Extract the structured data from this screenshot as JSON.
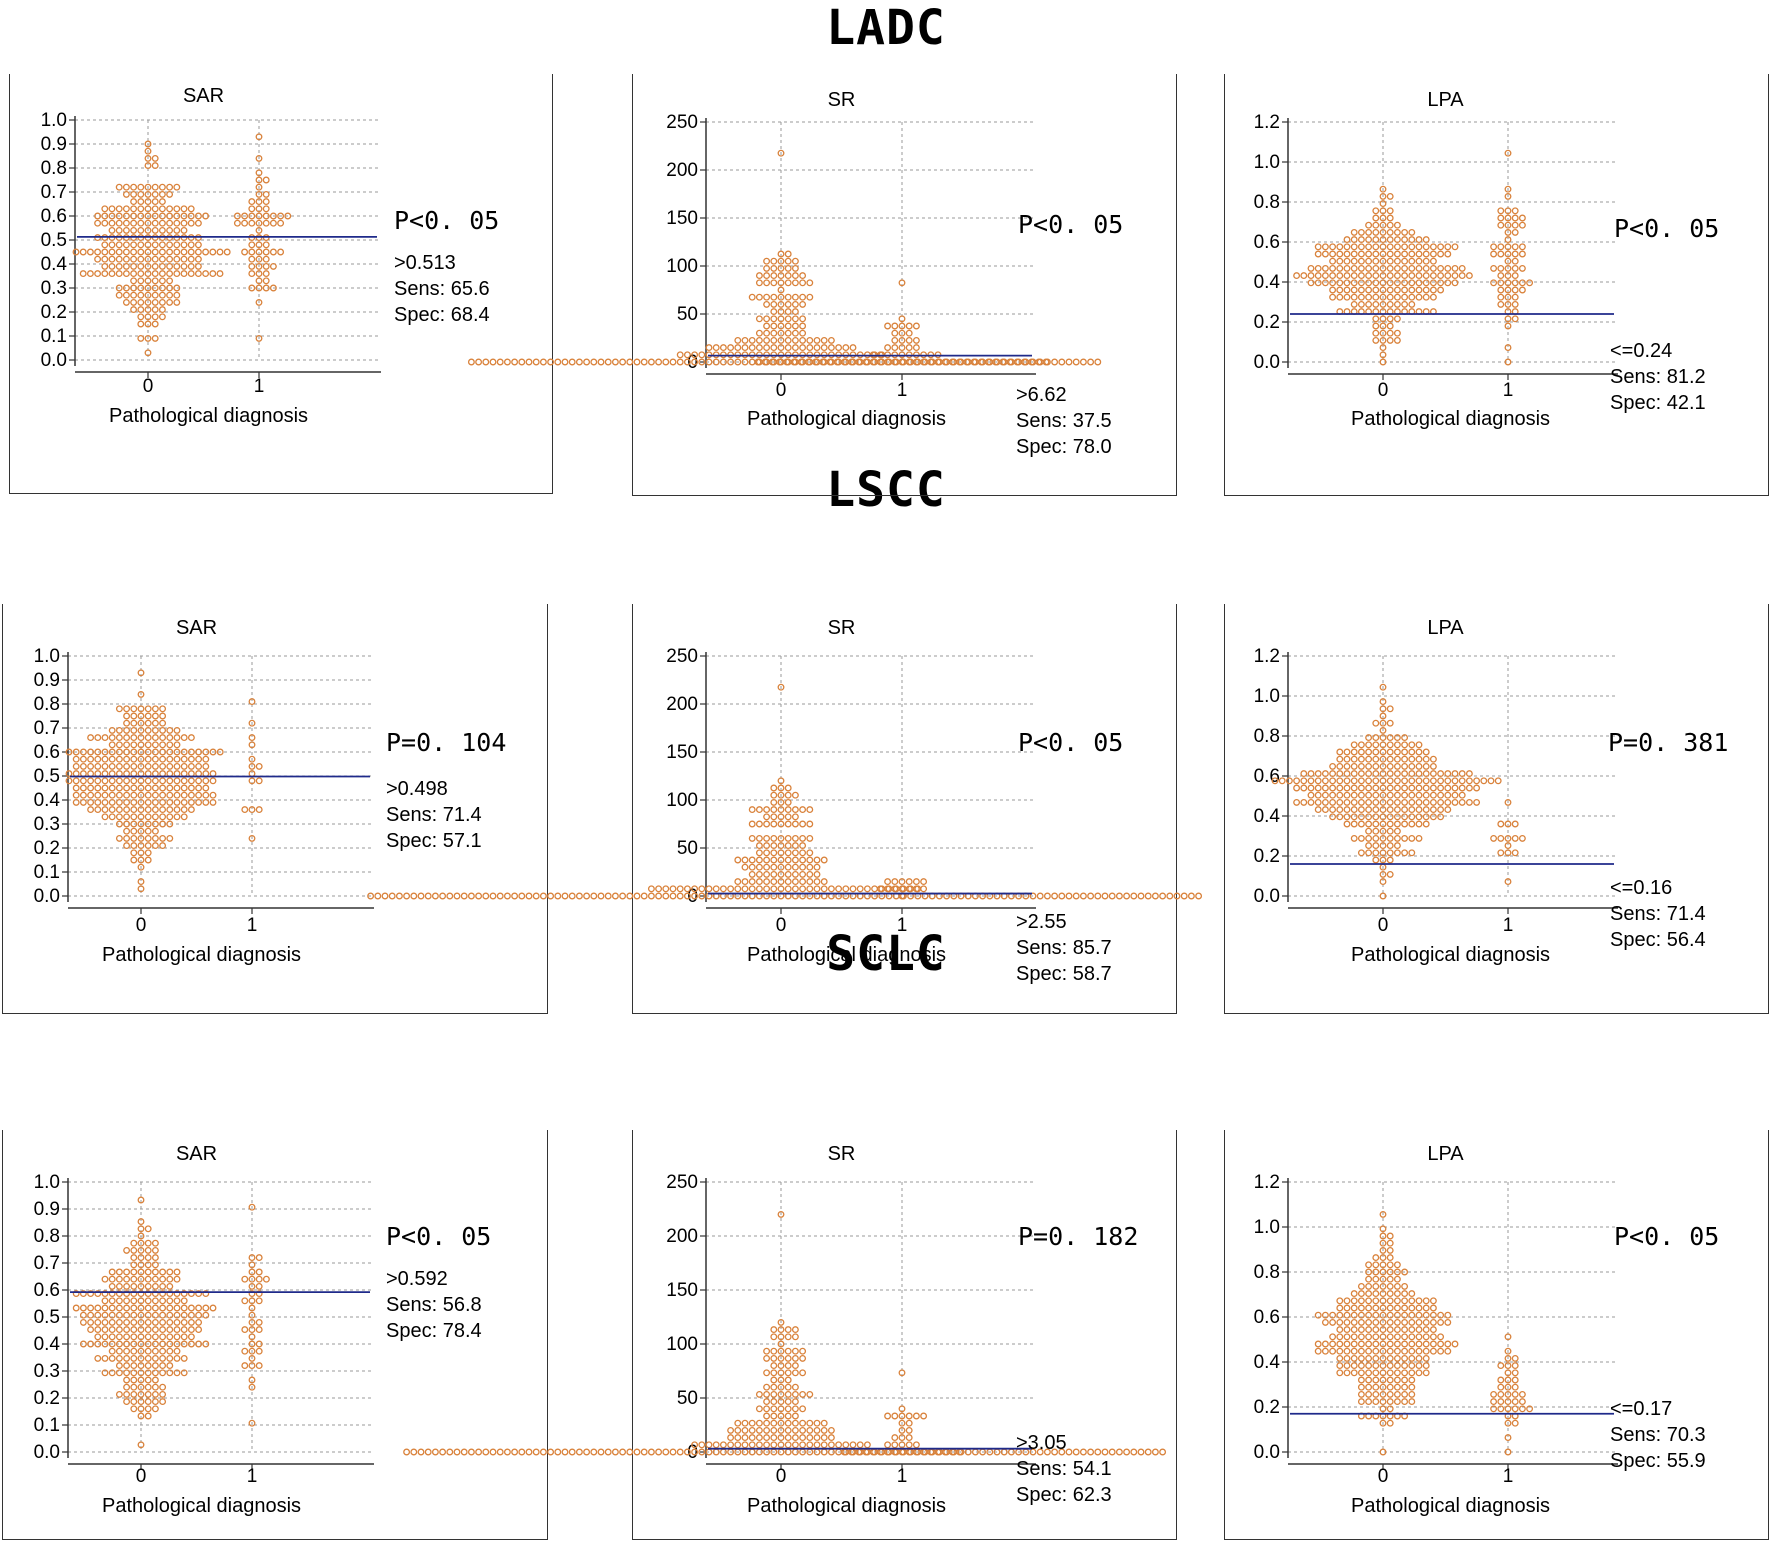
{
  "sections": [
    {
      "title": "LADC"
    },
    {
      "title": "LSCC"
    },
    {
      "title": "SCLC"
    }
  ],
  "chart_data": [
    {
      "type": "scatter",
      "id": "LADC-SAR",
      "title": "SAR",
      "xlabel": "Pathological diagnosis",
      "categories": [
        "0",
        "1"
      ],
      "ylim": [
        0,
        1.0
      ],
      "yticks": [
        "0.0",
        "0.1",
        "0.2",
        "0.3",
        "0.4",
        "0.5",
        "0.6",
        "0.7",
        "0.8",
        "0.9",
        "1.0"
      ],
      "distribution": [
        {
          "group": "0",
          "n": 230,
          "min": 0.03,
          "max": 0.9
        },
        {
          "group": "1",
          "n": 60,
          "min": 0.09,
          "max": 0.93
        }
      ],
      "cutoff_value": 0.513,
      "p_value": "P<0. 05",
      "criterion": ">0.513",
      "sensitivity": "Sens: 65.6",
      "specificity": "Spec: 68.4"
    },
    {
      "type": "scatter",
      "id": "LADC-SR",
      "title": "SR",
      "xlabel": "Pathological diagnosis",
      "categories": [
        "0",
        "1"
      ],
      "ylim": [
        0,
        250
      ],
      "yticks": [
        "0",
        "50",
        "100",
        "150",
        "200",
        "250"
      ],
      "distribution": [
        {
          "group": "0",
          "n": 220,
          "min": 0,
          "max": 217
        },
        {
          "group": "1",
          "n": 70,
          "min": 0,
          "max": 80
        }
      ],
      "cutoff_value": 6.62,
      "p_value": "P<0. 05",
      "criterion": ">6.62",
      "sensitivity": "Sens: 37.5",
      "specificity": "Spec: 78.0"
    },
    {
      "type": "scatter",
      "id": "LADC-LPA",
      "title": "LPA",
      "xlabel": "Pathological diagnosis",
      "categories": [
        "0",
        "1"
      ],
      "ylim": [
        0,
        1.2
      ],
      "yticks": [
        "0.0",
        "0.2",
        "0.4",
        "0.6",
        "0.8",
        "1.0",
        "1.2"
      ],
      "distribution": [
        {
          "group": "0",
          "n": 230,
          "min": 0,
          "max": 0.88
        },
        {
          "group": "1",
          "n": 60,
          "min": 0,
          "max": 1.04
        }
      ],
      "cutoff_value": 0.24,
      "p_value": "P<0. 05",
      "criterion": "<=0.24",
      "sensitivity": "Sens: 81.2",
      "specificity": "Spec: 42.1"
    },
    {
      "type": "scatter",
      "id": "LSCC-SAR",
      "title": "SAR",
      "xlabel": "Pathological diagnosis",
      "categories": [
        "0",
        "1"
      ],
      "ylim": [
        0,
        1.0
      ],
      "yticks": [
        "0.0",
        "0.1",
        "0.2",
        "0.3",
        "0.4",
        "0.5",
        "0.6",
        "0.7",
        "0.8",
        "0.9",
        "1.0"
      ],
      "distribution": [
        {
          "group": "0",
          "n": 280,
          "min": 0.03,
          "max": 0.93
        },
        {
          "group": "1",
          "n": 14,
          "min": 0.23,
          "max": 0.82
        }
      ],
      "cutoff_value": 0.498,
      "p_value": "P=0. 104",
      "criterion": ">0.498",
      "sensitivity": "Sens: 71.4",
      "specificity": "Spec: 57.1"
    },
    {
      "type": "scatter",
      "id": "LSCC-SR",
      "title": "SR",
      "xlabel": "Pathological diagnosis",
      "categories": [
        "0",
        "1"
      ],
      "ylim": [
        0,
        250
      ],
      "yticks": [
        "0",
        "50",
        "100",
        "150",
        "200",
        "250"
      ],
      "distribution": [
        {
          "group": "0",
          "n": 260,
          "min": 0,
          "max": 217
        },
        {
          "group": "1",
          "n": 14,
          "min": 2,
          "max": 17
        }
      ],
      "cutoff_value": 2.55,
      "p_value": "P<0. 05",
      "criterion": ">2.55",
      "sensitivity": "Sens: 85.7",
      "specificity": "Spec: 58.7"
    },
    {
      "type": "scatter",
      "id": "LSCC-LPA",
      "title": "LPA",
      "xlabel": "Pathological diagnosis",
      "categories": [
        "0",
        "1"
      ],
      "ylim": [
        0,
        1.2
      ],
      "yticks": [
        "0.0",
        "0.2",
        "0.4",
        "0.6",
        "0.8",
        "1.0",
        "1.2"
      ],
      "distribution": [
        {
          "group": "0",
          "n": 280,
          "min": 0,
          "max": 1.04
        },
        {
          "group": "1",
          "n": 14,
          "min": 0.07,
          "max": 0.47
        }
      ],
      "cutoff_value": 0.16,
      "p_value": "P=0. 381",
      "criterion": "<=0.16",
      "sensitivity": "Sens: 71.4",
      "specificity": "Spec: 56.4"
    },
    {
      "type": "scatter",
      "id": "SCLC-SAR",
      "title": "SAR",
      "xlabel": "Pathological diagnosis",
      "categories": [
        "0",
        "1"
      ],
      "ylim": [
        0,
        1.0
      ],
      "yticks": [
        "0.0",
        "0.1",
        "0.2",
        "0.3",
        "0.4",
        "0.5",
        "0.6",
        "0.7",
        "0.8",
        "0.9",
        "1.0"
      ],
      "distribution": [
        {
          "group": "0",
          "n": 260,
          "min": 0.03,
          "max": 0.93
        },
        {
          "group": "1",
          "n": 37,
          "min": 0.1,
          "max": 0.9
        }
      ],
      "cutoff_value": 0.592,
      "p_value": "P<0. 05",
      "criterion": ">0.592",
      "sensitivity": "Sens: 56.8",
      "specificity": "Spec: 78.4"
    },
    {
      "type": "scatter",
      "id": "SCLC-SR",
      "title": "SR",
      "xlabel": "Pathological diagnosis",
      "categories": [
        "0",
        "1"
      ],
      "ylim": [
        0,
        250
      ],
      "yticks": [
        "0",
        "50",
        "100",
        "150",
        "200",
        "250"
      ],
      "distribution": [
        {
          "group": "0",
          "n": 240,
          "min": 0,
          "max": 217
        },
        {
          "group": "1",
          "n": 37,
          "min": 0,
          "max": 73
        }
      ],
      "cutoff_value": 3.05,
      "p_value": "P=0. 182",
      "criterion": ">3.05",
      "sensitivity": "Sens: 54.1",
      "specificity": "Spec: 62.3"
    },
    {
      "type": "scatter",
      "id": "SCLC-LPA",
      "title": "LPA",
      "xlabel": "Pathological diagnosis",
      "categories": [
        "0",
        "1"
      ],
      "ylim": [
        0,
        1.2
      ],
      "yticks": [
        "0.0",
        "0.2",
        "0.4",
        "0.6",
        "0.8",
        "1.0",
        "1.2"
      ],
      "distribution": [
        {
          "group": "0",
          "n": 260,
          "min": 0,
          "max": 1.04
        },
        {
          "group": "1",
          "n": 37,
          "min": 0,
          "max": 0.5
        }
      ],
      "cutoff_value": 0.17,
      "p_value": "P<0. 05",
      "criterion": "<=0.17",
      "sensitivity": "Sens: 70.3",
      "specificity": "Spec: 55.9"
    }
  ],
  "colors": {
    "marker": "#d9823b",
    "cutoff_line": "#1f2a8a",
    "grid": "#9a9a9a",
    "axis": "#333333"
  }
}
